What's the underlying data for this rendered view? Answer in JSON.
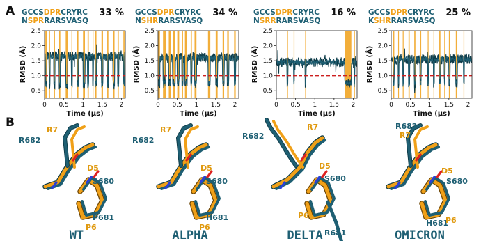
{
  "panels": {
    "a": "A",
    "b": "B"
  },
  "chart_data": [
    {
      "type": "line",
      "seq_line1": {
        "teal_pre": "GCCS",
        "orange": "DPR",
        "teal_post": "CRYRC"
      },
      "seq_line2": {
        "teal_pre": "N",
        "orange": "SPR",
        "teal_post": "RARSVASQ"
      },
      "percent": "33 %",
      "xlabel": "Time (μs)",
      "ylabel": "RMSD (Å)",
      "xlim": [
        0,
        2.1
      ],
      "ylim": [
        0.25,
        2.5
      ],
      "xticks": [
        "0",
        "0.5",
        "1",
        "1.5",
        "2"
      ],
      "yticks": [
        "0.5",
        "1.0",
        "1.5",
        "2.0",
        "2.5"
      ],
      "threshold": 1.0,
      "high_level": 1.65,
      "low_level": 0.7,
      "low_intervals": [
        [
          0.02,
          0.06
        ],
        [
          0.12,
          0.14
        ],
        [
          0.24,
          0.27
        ],
        [
          0.38,
          0.41
        ],
        [
          0.55,
          0.6
        ],
        [
          0.7,
          0.72
        ],
        [
          0.85,
          0.88
        ],
        [
          1.0,
          1.05
        ],
        [
          1.12,
          1.15
        ],
        [
          1.25,
          1.27
        ],
        [
          1.32,
          1.35
        ],
        [
          1.48,
          1.52
        ],
        [
          1.63,
          1.66
        ],
        [
          1.78,
          1.82
        ],
        [
          1.9,
          1.93
        ],
        [
          2.05,
          2.08
        ]
      ]
    },
    {
      "type": "line",
      "seq_line1": {
        "teal_pre": "GCCS",
        "orange": "DPR",
        "teal_post": "CRYRC"
      },
      "seq_line2": {
        "teal_pre": "N",
        "orange": "SHR",
        "teal_post": "RARSVASQ"
      },
      "percent": "34 %",
      "xlabel": "Time (μs)",
      "ylabel": "RMSD (Å)",
      "xlim": [
        0,
        2.1
      ],
      "ylim": [
        0.25,
        2.5
      ],
      "xticks": [
        "0",
        "0.5",
        "1",
        "1.5",
        "2"
      ],
      "yticks": [
        "0.5",
        "1.0",
        "1.5",
        "2.0",
        "2.5"
      ],
      "threshold": 1.0,
      "high_level": 1.6,
      "low_level": 0.75,
      "low_intervals": [
        [
          0.0,
          0.05
        ],
        [
          0.13,
          0.2
        ],
        [
          0.28,
          0.33
        ],
        [
          0.38,
          0.45
        ],
        [
          0.5,
          0.55
        ],
        [
          0.62,
          0.65
        ],
        [
          0.7,
          0.76
        ],
        [
          0.85,
          0.88
        ],
        [
          0.95,
          1.0
        ],
        [
          1.3,
          1.36
        ],
        [
          1.5,
          1.55
        ],
        [
          1.68,
          1.72
        ],
        [
          1.8,
          1.84
        ],
        [
          1.98,
          2.02
        ]
      ]
    },
    {
      "type": "line",
      "seq_line1": {
        "teal_pre": "GCCS",
        "orange": "DPR",
        "teal_post": "CRYRC"
      },
      "seq_line2": {
        "teal_pre": "N",
        "orange": "SRR",
        "teal_post": "RARSVASQ"
      },
      "percent": "16 %",
      "xlabel": "Time (μs)",
      "ylabel": "RMSD (Å)",
      "xlim": [
        0,
        2.1
      ],
      "ylim": [
        0.25,
        2.5
      ],
      "xticks": [
        "0",
        "0.5",
        "1",
        "1.5",
        "2"
      ],
      "yticks": [
        "0.5",
        "1.0",
        "1.5",
        "2.0",
        "2.5"
      ],
      "threshold": 1.0,
      "high_level": 1.45,
      "low_level": 0.75,
      "low_intervals": [
        [
          0.28,
          0.3
        ],
        [
          0.45,
          0.47
        ],
        [
          0.75,
          0.77
        ],
        [
          1.78,
          1.95
        ],
        [
          2.02,
          2.04
        ]
      ]
    },
    {
      "type": "line",
      "seq_line1": {
        "teal_pre": "GCCS",
        "orange": "DPR",
        "teal_post": "CRYRC"
      },
      "seq_line2": {
        "teal_pre": "K",
        "orange": "SHR",
        "teal_post": "RARSVASQ"
      },
      "percent": "25 %",
      "xlabel": "Time (μs)",
      "ylabel": "RMSD (Å)",
      "xlim": [
        0,
        2.1
      ],
      "ylim": [
        0.25,
        2.5
      ],
      "xticks": [
        "0",
        "0.5",
        "1",
        "1.5",
        "2"
      ],
      "yticks": [
        "0.5",
        "1.0",
        "1.5",
        "2.0",
        "2.5"
      ],
      "threshold": 1.0,
      "high_level": 1.55,
      "low_level": 0.75,
      "low_intervals": [
        [
          0.05,
          0.08
        ],
        [
          0.18,
          0.2
        ],
        [
          0.3,
          0.32
        ],
        [
          0.45,
          0.48
        ],
        [
          0.6,
          0.63
        ],
        [
          0.75,
          0.78
        ],
        [
          0.95,
          0.97
        ],
        [
          1.1,
          1.12
        ],
        [
          1.25,
          1.28
        ],
        [
          1.38,
          1.4
        ],
        [
          1.5,
          1.53
        ],
        [
          1.68,
          1.72
        ],
        [
          1.88,
          1.9
        ]
      ]
    }
  ],
  "colors": {
    "teal": "#1e5f73",
    "orange": "#f0a018",
    "threshold": "#cc1f1f"
  },
  "structures": [
    {
      "variant": "WT",
      "labels": {
        "r7": {
          "text": "R7",
          "color": "#e09a10"
        },
        "r682": {
          "text": "R682",
          "color": "#1e5f73"
        },
        "d5": {
          "text": "D5",
          "color": "#e09a10"
        },
        "s680": {
          "text": "S680",
          "color": "#1e5f73"
        },
        "p681": {
          "text": "P681",
          "color": "#1e5f73"
        },
        "p6": {
          "text": "P6",
          "color": "#e09a10"
        }
      }
    },
    {
      "variant": "ALPHA",
      "labels": {
        "r7": {
          "text": "R7",
          "color": "#e09a10"
        },
        "r682": {
          "text": "R682",
          "color": "#1e5f73"
        },
        "d5": {
          "text": "D5",
          "color": "#e09a10"
        },
        "s680": {
          "text": "S680",
          "color": "#1e5f73"
        },
        "p681": {
          "text": "H681",
          "color": "#1e5f73"
        },
        "p6": {
          "text": "P6",
          "color": "#e09a10"
        }
      }
    },
    {
      "variant": "DELTA",
      "labels": {
        "r7": {
          "text": "R7",
          "color": "#e09a10"
        },
        "r682": {
          "text": "R682",
          "color": "#1e5f73"
        },
        "d5": {
          "text": "D5",
          "color": "#e09a10"
        },
        "s680": {
          "text": "S680",
          "color": "#1e5f73"
        },
        "p681": {
          "text": "R681",
          "color": "#1e5f73"
        },
        "p6": {
          "text": "P6",
          "color": "#e09a10"
        }
      }
    },
    {
      "variant": "OMICRON",
      "labels": {
        "r7": {
          "text": "R7",
          "color": "#e09a10"
        },
        "r682": {
          "text": "R682",
          "color": "#1e5f73"
        },
        "d5": {
          "text": "D5",
          "color": "#e09a10"
        },
        "s680": {
          "text": "S680",
          "color": "#1e5f73"
        },
        "p681": {
          "text": "H681",
          "color": "#1e5f73"
        },
        "p6": {
          "text": "P6",
          "color": "#e09a10"
        }
      }
    }
  ]
}
